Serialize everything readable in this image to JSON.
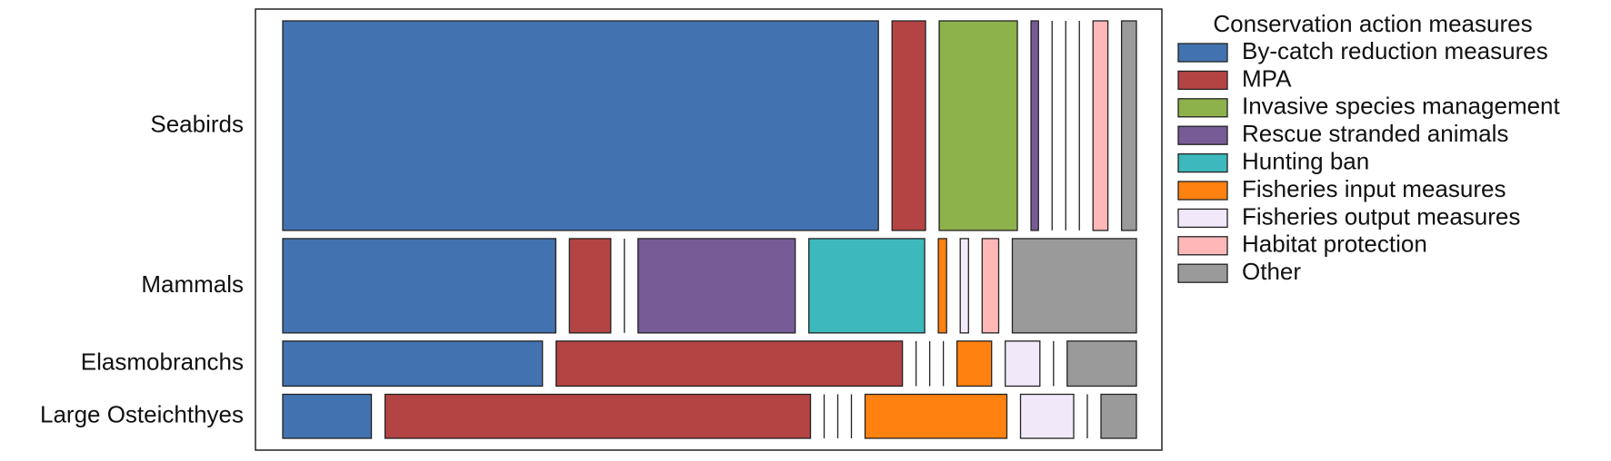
{
  "chart_data": {
    "type": "mosaic",
    "legend_title": "Conservation action measures",
    "categories": [
      "Seabirds",
      "Mammals",
      "Elasmobranchs",
      "Large Osteichthyes"
    ],
    "series": [
      {
        "name": "By-catch reduction measures",
        "color": "#4273b0",
        "values": [
          160,
          33,
          15,
          5
        ]
      },
      {
        "name": "MPA",
        "color": "#b44444",
        "values": [
          9,
          5,
          20,
          24
        ]
      },
      {
        "name": "Invasive species management",
        "color": "#8db14b",
        "values": [
          21,
          0,
          0,
          0
        ]
      },
      {
        "name": "Rescue stranded animals",
        "color": "#765b97",
        "values": [
          2,
          19,
          0,
          0
        ]
      },
      {
        "name": "Hunting ban",
        "color": "#3db9bd",
        "values": [
          0,
          14,
          0,
          0
        ]
      },
      {
        "name": "Fisheries input measures",
        "color": "#ff810f",
        "values": [
          0,
          1,
          2,
          8
        ]
      },
      {
        "name": "Fisheries output measures",
        "color": "#f1e8f9",
        "values": [
          0,
          1,
          2,
          3
        ]
      },
      {
        "name": "Habitat protection",
        "color": "#ffb7b7",
        "values": [
          4,
          2,
          0,
          0
        ]
      },
      {
        "name": "Other",
        "color": "#9a9a9a",
        "values": [
          4,
          15,
          4,
          2
        ]
      }
    ]
  }
}
